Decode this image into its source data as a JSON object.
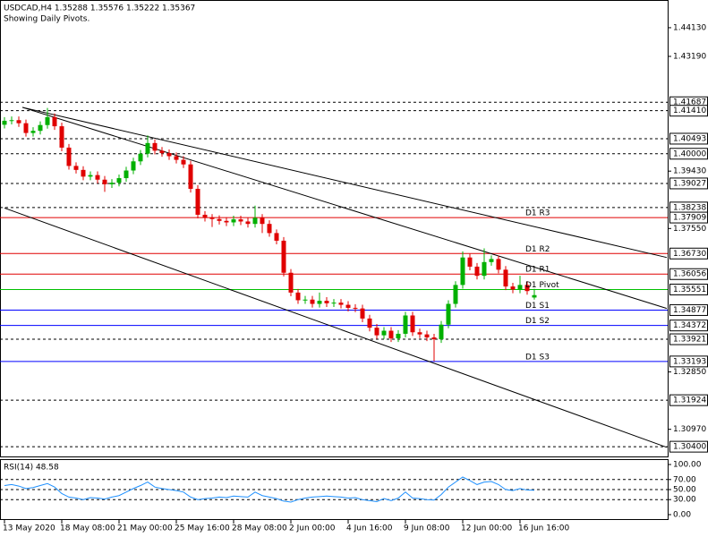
{
  "chart_data": {
    "type": "candlestick",
    "title": "USDCAD,H4  1.35288 1.35576 1.35222 1.35367",
    "subtitle": "Showing Daily Pivots.",
    "categories": [
      "13 May 2020",
      null,
      null,
      null,
      null,
      null,
      null,
      null,
      "18 May 08:00",
      null,
      null,
      null,
      null,
      null,
      null,
      null,
      "21 May 00:00",
      null,
      null,
      null,
      null,
      null,
      null,
      null,
      "25 May 16:00",
      null,
      null,
      null,
      null,
      null,
      null,
      null,
      "28 May 08:00",
      null,
      null,
      null,
      null,
      null,
      null,
      null,
      "2 Jun 00:00",
      null,
      null,
      null,
      null,
      null,
      null,
      null,
      "4 Jun 16:00",
      null,
      null,
      null,
      null,
      null,
      null,
      null,
      "9 Jun 08:00",
      null,
      null,
      null,
      null,
      null,
      null,
      null,
      "12 Jun 00:00",
      null,
      null,
      null,
      null,
      null,
      null,
      null,
      "16 Jun 16:00",
      null,
      null
    ],
    "open": [
      1.4095,
      1.4108,
      1.411,
      1.41,
      1.4068,
      1.4075,
      1.4094,
      1.412,
      1.409,
      1.402,
      1.396,
      1.3947,
      1.3925,
      1.393,
      1.3915,
      1.39,
      1.3905,
      1.392,
      1.3945,
      1.3975,
      1.4,
      1.4035,
      1.401,
      1.4002,
      1.3992,
      1.398,
      1.3965,
      1.3885,
      1.38,
      1.379,
      1.3786,
      1.378,
      1.3775,
      1.3785,
      1.3778,
      1.377,
      1.379,
      1.377,
      1.374,
      1.3715,
      1.361,
      1.3545,
      1.352,
      1.3522,
      1.3508,
      1.3518,
      1.351,
      1.3512,
      1.3505,
      1.3495,
      1.3493,
      1.346,
      1.343,
      1.3405,
      1.342,
      1.3395,
      1.341,
      1.347,
      1.3415,
      1.3408,
      1.3398,
      1.3392,
      1.344,
      1.3508,
      1.357,
      1.366,
      1.363,
      1.36,
      1.3645,
      1.3655,
      1.362,
      1.3565,
      1.3555,
      1.357,
      1.35288
    ],
    "high": [
      1.412,
      1.4122,
      1.4122,
      1.4112,
      1.4087,
      1.4106,
      1.415,
      1.4132,
      1.4102,
      1.4032,
      1.3972,
      1.3959,
      1.3942,
      1.3942,
      1.3927,
      1.3917,
      1.3932,
      1.3957,
      1.3987,
      1.4012,
      1.406,
      1.4047,
      1.4022,
      1.4014,
      1.4004,
      1.3992,
      1.3977,
      1.3897,
      1.3812,
      1.3802,
      1.3798,
      1.3792,
      1.3797,
      1.3797,
      1.379,
      1.383,
      1.3802,
      1.3782,
      1.3752,
      1.3727,
      1.3622,
      1.3557,
      1.3534,
      1.3534,
      1.3545,
      1.353,
      1.3524,
      1.3524,
      1.3517,
      1.3507,
      1.3505,
      1.3472,
      1.3442,
      1.3432,
      1.3432,
      1.3422,
      1.3482,
      1.3482,
      1.3427,
      1.342,
      1.341,
      1.3452,
      1.352,
      1.3582,
      1.368,
      1.3672,
      1.3642,
      1.369,
      1.3667,
      1.3667,
      1.3632,
      1.3577,
      1.36,
      1.3582,
      1.35576
    ],
    "low": [
      1.4083,
      1.4096,
      1.4088,
      1.4056,
      1.4056,
      1.4063,
      1.4082,
      1.4078,
      1.4008,
      1.3948,
      1.3935,
      1.3913,
      1.3913,
      1.3903,
      1.3875,
      1.3888,
      1.3893,
      1.3908,
      1.3933,
      1.3963,
      1.3988,
      1.3998,
      1.399,
      1.398,
      1.3968,
      1.3953,
      1.3873,
      1.3788,
      1.3778,
      1.376,
      1.3768,
      1.3763,
      1.3763,
      1.3766,
      1.3758,
      1.3758,
      1.374,
      1.3728,
      1.3703,
      1.3598,
      1.3533,
      1.3508,
      1.3508,
      1.3496,
      1.3496,
      1.3498,
      1.3498,
      1.3493,
      1.3483,
      1.3481,
      1.3448,
      1.3418,
      1.3393,
      1.3393,
      1.3383,
      1.3383,
      1.3398,
      1.3403,
      1.3396,
      1.3386,
      1.332,
      1.338,
      1.3428,
      1.3496,
      1.3558,
      1.3618,
      1.3588,
      1.3588,
      1.3633,
      1.3608,
      1.3553,
      1.3543,
      1.3543,
      1.3538,
      1.35222
    ],
    "close": [
      1.4108,
      1.411,
      1.41,
      1.4068,
      1.4075,
      1.4094,
      1.412,
      1.409,
      1.402,
      1.396,
      1.3947,
      1.3925,
      1.393,
      1.3915,
      1.39,
      1.3905,
      1.392,
      1.3945,
      1.3975,
      1.4,
      1.4035,
      1.401,
      1.4002,
      1.3992,
      1.398,
      1.3965,
      1.3885,
      1.38,
      1.379,
      1.3786,
      1.378,
      1.3775,
      1.3785,
      1.3778,
      1.377,
      1.379,
      1.377,
      1.374,
      1.3715,
      1.361,
      1.3545,
      1.352,
      1.3522,
      1.3508,
      1.3518,
      1.351,
      1.3512,
      1.3505,
      1.3495,
      1.3493,
      1.346,
      1.343,
      1.3405,
      1.342,
      1.3395,
      1.341,
      1.347,
      1.3415,
      1.3408,
      1.3398,
      1.3392,
      1.344,
      1.3508,
      1.357,
      1.366,
      1.363,
      1.36,
      1.3645,
      1.3655,
      1.362,
      1.3565,
      1.3555,
      1.357,
      1.355,
      1.35367
    ],
    "up_color": "#00b000",
    "down_color": "#e00000",
    "ylim": [
      1.3011,
      1.4492
    ],
    "yticks": [
      {
        "value": 1.4413,
        "label": "1.44130"
      },
      {
        "value": 1.4319,
        "label": "1.43190"
      },
      {
        "value": 1.3943,
        "label": "1.39430"
      },
      {
        "value": 1.3755,
        "label": "1.37550"
      },
      {
        "value": 1.3285,
        "label": "1.32850"
      },
      {
        "value": 1.3097,
        "label": "1.30970"
      }
    ],
    "levels": [
      {
        "value": 1.41687,
        "color": "#000000",
        "dashed": true
      },
      {
        "value": 1.4141,
        "label": "1.41410",
        "color": "#000000",
        "dashed": true
      },
      {
        "value": 1.40493,
        "color": "#000000",
        "dashed": true
      },
      {
        "value": 1.4,
        "label": "1.40000",
        "color": "#000000",
        "dashed": true
      },
      {
        "value": 1.39027,
        "color": "#000000",
        "dashed": true
      },
      {
        "value": 1.38238,
        "color": "#000000",
        "dashed": true
      },
      {
        "value": 1.37909,
        "color": "#e00000",
        "dashed": false,
        "name": "D1 R3"
      },
      {
        "value": 1.3673,
        "label": "1.36730",
        "color": "#e00000",
        "dashed": false,
        "name": "D1 R2"
      },
      {
        "value": 1.36056,
        "color": "#e00000",
        "dashed": false,
        "name": "D1 R1"
      },
      {
        "value": 1.35551,
        "color": "#00c000",
        "dashed": false,
        "name": "D1 Pivot"
      },
      {
        "value": 1.34877,
        "color": "#0000ff",
        "dashed": false,
        "name": "D1 S1"
      },
      {
        "value": 1.34372,
        "color": "#0000ff",
        "dashed": false,
        "name": "D1 S2"
      },
      {
        "value": 1.33921,
        "color": "#000000",
        "dashed": true
      },
      {
        "value": 1.33193,
        "color": "#0000ff",
        "dashed": false,
        "name": "D1 S3"
      },
      {
        "value": 1.31924,
        "color": "#000000",
        "dashed": true
      },
      {
        "value": 1.304,
        "label": "1.30400",
        "color": "#000000",
        "dashed": true
      }
    ],
    "trendlines": [
      {
        "x": [
          2.5,
          92.5
        ],
        "y": [
          1.4152,
          1.366
        ]
      },
      {
        "x": [
          2.5,
          92.5
        ],
        "y": [
          1.4152,
          1.3493
        ]
      },
      {
        "x": [
          0,
          92.5
        ],
        "y": [
          1.3822,
          1.3038
        ]
      }
    ],
    "rsi": {
      "title": "RSI(14) 48.58",
      "color": "#1e90ff",
      "ylim": [
        0,
        100
      ],
      "yticks": [
        {
          "value": 100,
          "label": "100.00"
        },
        {
          "value": 70,
          "label": "70.00"
        },
        {
          "value": 50,
          "label": "50.00"
        },
        {
          "value": 30,
          "label": "30.00"
        },
        {
          "value": 0,
          "label": "0.00"
        }
      ],
      "levels": [
        70,
        50,
        30
      ],
      "values": [
        58,
        60,
        57,
        52,
        54,
        58,
        62,
        55,
        42,
        35,
        33,
        30,
        34,
        33,
        31,
        35,
        38,
        45,
        52,
        58,
        65,
        55,
        52,
        50,
        48,
        45,
        35,
        30,
        32,
        33,
        35,
        34,
        37,
        36,
        35,
        45,
        38,
        35,
        32,
        27,
        25,
        30,
        33,
        35,
        36,
        37,
        36,
        35,
        33,
        34,
        30,
        28,
        26,
        32,
        28,
        33,
        45,
        33,
        32,
        30,
        29,
        40,
        55,
        65,
        75,
        68,
        60,
        65,
        66,
        60,
        50,
        48,
        52,
        49,
        48.58
      ]
    }
  }
}
